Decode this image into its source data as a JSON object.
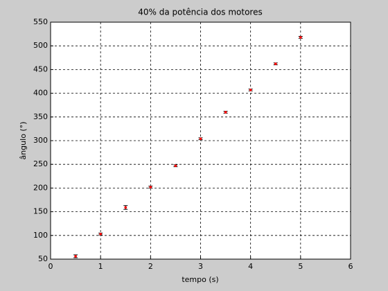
{
  "chart_data": {
    "type": "errorbar-scatter",
    "title": "40% da potência dos motores",
    "xlabel": "tempo (s)",
    "ylabel": "ângulo (°)",
    "x": [
      0.5,
      1,
      1.5,
      2,
      2.5,
      3,
      3.5,
      4,
      4.5,
      5
    ],
    "series": [
      {
        "color": "#ff0000",
        "errorbar_color": "#000000",
        "values": [
          56,
          103,
          159,
          202,
          247,
          304,
          360,
          407,
          462,
          518
        ],
        "errors": [
          3,
          2,
          4,
          2,
          2,
          2,
          2,
          2,
          2,
          2
        ]
      }
    ],
    "xlim": [
      0,
      6
    ],
    "xticks": [
      0,
      1,
      2,
      3,
      4,
      5,
      6
    ],
    "ylim": [
      50,
      550
    ],
    "yticks": [
      50,
      100,
      150,
      200,
      250,
      300,
      350,
      400,
      450,
      500,
      550
    ],
    "grid": true
  }
}
